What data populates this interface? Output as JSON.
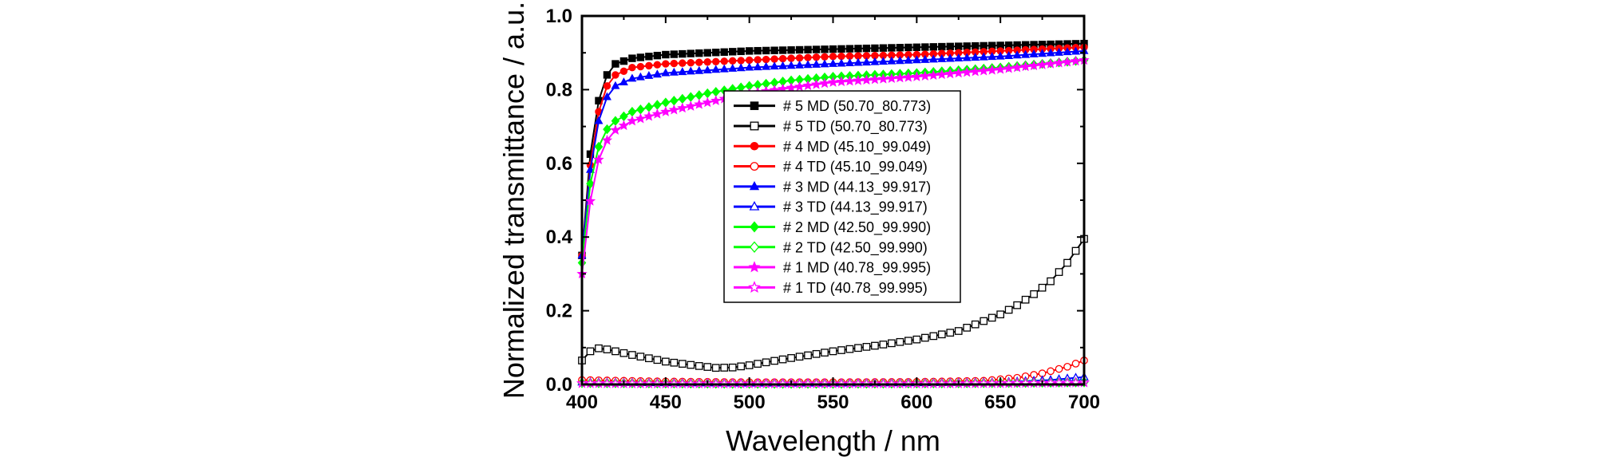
{
  "chart_data": {
    "type": "line",
    "xlabel": "Wavelength / nm",
    "ylabel": "Normalized transmittance / a.u.",
    "xlim": [
      400,
      700
    ],
    "ylim": [
      0.0,
      1.0
    ],
    "xticks": [
      "400",
      "450",
      "500",
      "550",
      "600",
      "650",
      "700"
    ],
    "yticks": [
      "0.0",
      "0.2",
      "0.4",
      "0.6",
      "0.8",
      "1.0"
    ],
    "legend_position": "center",
    "series": [
      {
        "name": "# 5 MD (50.70_80.773)",
        "color": "#000000",
        "marker": "square",
        "filled": true,
        "x": [
          400,
          404,
          408,
          412,
          416,
          420,
          430,
          450,
          500,
          550,
          600,
          650,
          700
        ],
        "y": [
          0.35,
          0.59,
          0.73,
          0.81,
          0.85,
          0.87,
          0.885,
          0.895,
          0.905,
          0.91,
          0.915,
          0.92,
          0.925
        ]
      },
      {
        "name": "# 5 TD (50.70_80.773)",
        "color": "#000000",
        "marker": "square",
        "filled": false,
        "x": [
          400,
          405,
          410,
          415,
          420,
          430,
          450,
          470,
          480,
          490,
          500,
          520,
          550,
          575,
          600,
          625,
          650,
          660,
          670,
          680,
          690,
          700
        ],
        "y": [
          0.065,
          0.09,
          0.098,
          0.095,
          0.09,
          0.08,
          0.062,
          0.05,
          0.045,
          0.046,
          0.052,
          0.068,
          0.09,
          0.105,
          0.122,
          0.145,
          0.19,
          0.215,
          0.245,
          0.28,
          0.33,
          0.395
        ]
      },
      {
        "name": "# 4 MD (45.10_99.049)",
        "color": "#ff0000",
        "marker": "circle",
        "filled": true,
        "x": [
          400,
          404,
          408,
          412,
          416,
          420,
          430,
          450,
          500,
          550,
          600,
          650,
          700
        ],
        "y": [
          0.35,
          0.56,
          0.7,
          0.78,
          0.82,
          0.84,
          0.86,
          0.87,
          0.88,
          0.89,
          0.895,
          0.905,
          0.915
        ]
      },
      {
        "name": "# 4 TD (45.10_99.049)",
        "color": "#ff0000",
        "marker": "circle",
        "filled": false,
        "x": [
          400,
          450,
          500,
          550,
          600,
          640,
          660,
          675,
          690,
          700
        ],
        "y": [
          0.012,
          0.008,
          0.006,
          0.006,
          0.007,
          0.01,
          0.018,
          0.03,
          0.048,
          0.065
        ]
      },
      {
        "name": "# 3 MD (44.13_99.917)",
        "color": "#0000ff",
        "marker": "triangle",
        "filled": true,
        "x": [
          400,
          404,
          408,
          412,
          416,
          420,
          430,
          450,
          500,
          550,
          600,
          650,
          700
        ],
        "y": [
          0.35,
          0.55,
          0.68,
          0.75,
          0.79,
          0.81,
          0.83,
          0.845,
          0.86,
          0.87,
          0.88,
          0.89,
          0.905
        ]
      },
      {
        "name": "# 3 TD (44.13_99.917)",
        "color": "#0000ff",
        "marker": "triangle",
        "filled": false,
        "x": [
          400,
          450,
          500,
          550,
          600,
          650,
          680,
          700
        ],
        "y": [
          0.006,
          0.004,
          0.003,
          0.003,
          0.004,
          0.006,
          0.012,
          0.02
        ]
      },
      {
        "name": "# 2 MD (42.50_99.990)",
        "color": "#00ff00",
        "marker": "diamond",
        "filled": true,
        "x": [
          400,
          404,
          408,
          412,
          416,
          420,
          430,
          450,
          475,
          500,
          525,
          550,
          600,
          650,
          700
        ],
        "y": [
          0.33,
          0.52,
          0.62,
          0.67,
          0.7,
          0.715,
          0.74,
          0.765,
          0.79,
          0.81,
          0.825,
          0.835,
          0.845,
          0.86,
          0.88
        ]
      },
      {
        "name": "# 2 TD (42.50_99.990)",
        "color": "#00ff00",
        "marker": "diamond",
        "filled": false,
        "x": [
          400,
          450,
          500,
          550,
          600,
          650,
          700
        ],
        "y": [
          0.004,
          0.003,
          0.002,
          0.002,
          0.003,
          0.004,
          0.006
        ]
      },
      {
        "name": "# 1 MD (40.78_99.995)",
        "color": "#ff00ff",
        "marker": "star",
        "filled": true,
        "x": [
          400,
          404,
          408,
          412,
          416,
          420,
          430,
          450,
          475,
          500,
          525,
          550,
          600,
          650,
          700
        ],
        "y": [
          0.3,
          0.47,
          0.58,
          0.64,
          0.67,
          0.69,
          0.715,
          0.74,
          0.765,
          0.79,
          0.805,
          0.82,
          0.835,
          0.855,
          0.88
        ]
      },
      {
        "name": "# 1 TD (40.78_99.995)",
        "color": "#ff00ff",
        "marker": "star",
        "filled": false,
        "x": [
          400,
          450,
          500,
          550,
          600,
          650,
          700
        ],
        "y": [
          0.003,
          0.002,
          0.002,
          0.002,
          0.002,
          0.003,
          0.005
        ]
      }
    ]
  }
}
